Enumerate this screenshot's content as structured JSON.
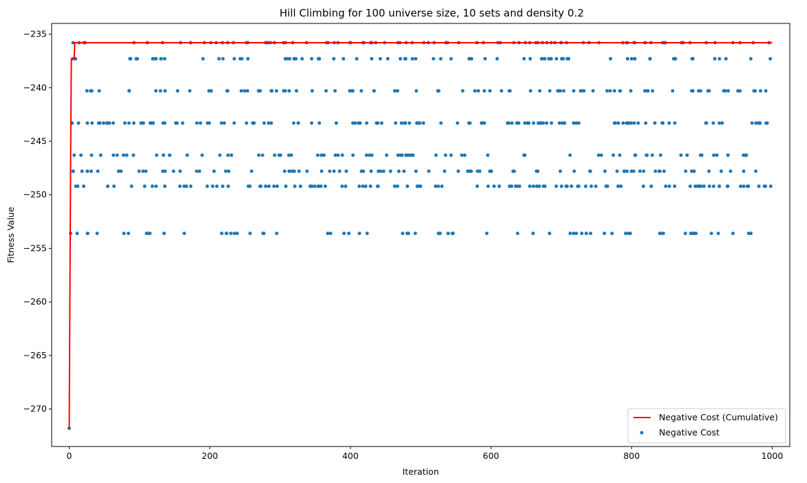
{
  "chart_data": {
    "type": "scatter",
    "title": "Hill Climbing for 100 universe size, 10 sets and density 0.2",
    "xlabel": "Iteration",
    "ylabel": "Fitness Value",
    "xlim": [
      -25,
      1025
    ],
    "ylim": [
      -273.5,
      -234.0
    ],
    "xticks": [
      0,
      200,
      400,
      600,
      800,
      1000
    ],
    "xtick_labels": [
      "0",
      "200",
      "400",
      "600",
      "800",
      "1000"
    ],
    "yticks": [
      -270,
      -265,
      -260,
      -255,
      -250,
      -245,
      -240,
      -235
    ],
    "ytick_labels": [
      "−270",
      "−265",
      "−260",
      "−255",
      "−250",
      "−245",
      "−240",
      "−235"
    ],
    "grid": false,
    "legend_position": "bottom-right",
    "colors": {
      "line": "#ff0000",
      "scatter": "#1f77b4"
    },
    "series": [
      {
        "name": "Negative Cost (Cumulative)",
        "kind": "line",
        "x": [
          0,
          2,
          3,
          7,
          8,
          1000
        ],
        "y": [
          -271.8,
          -246.3,
          -237.3,
          -237.3,
          -235.8,
          -235.8
        ]
      },
      {
        "name": "Negative Cost",
        "kind": "scatter",
        "levels": [
          -235.8,
          -237.3,
          -240.3,
          -243.3,
          -246.3,
          -247.8,
          -249.2,
          -253.6
        ],
        "initial_point": [
          0,
          -271.8
        ],
        "x_range": [
          0,
          1000
        ],
        "point_count_per_level": [
          95,
          80,
          90,
          120,
          75,
          85,
          110,
          65
        ]
      }
    ]
  }
}
